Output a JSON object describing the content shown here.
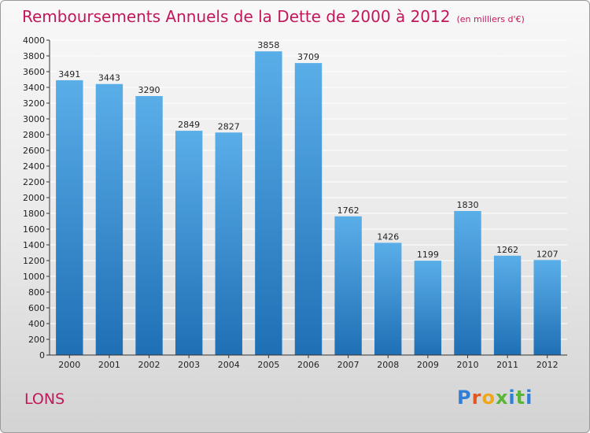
{
  "header": {
    "title": "Remboursements Annuels de la Dette de 2000 à 2012",
    "unit": "(en milliers d'€)"
  },
  "footer": {
    "place": "LONS",
    "logo": "Proxiti"
  },
  "colors": {
    "title": "#c2185b",
    "bar_top": "#5aaee8",
    "bar_bottom": "#1f6fb5",
    "axis": "#333333",
    "grid": "#ffffff"
  },
  "chart_data": {
    "type": "bar",
    "title": "Remboursements Annuels de la Dette de 2000 à 2012",
    "subtitle": "(en milliers d'€)",
    "xlabel": "",
    "ylabel": "",
    "categories": [
      "2000",
      "2001",
      "2002",
      "2003",
      "2004",
      "2005",
      "2006",
      "2007",
      "2008",
      "2009",
      "2010",
      "2011",
      "2012"
    ],
    "values": [
      3491,
      3443,
      3290,
      2849,
      2827,
      3858,
      3709,
      1762,
      1426,
      1199,
      1830,
      1262,
      1207
    ],
    "ylim": [
      0,
      4000
    ],
    "yticks": [
      0,
      200,
      400,
      600,
      800,
      1000,
      1200,
      1400,
      1600,
      1800,
      2000,
      2200,
      2400,
      2600,
      2800,
      3000,
      3200,
      3400,
      3600,
      3800,
      4000
    ],
    "grid": true,
    "legend": "none"
  }
}
